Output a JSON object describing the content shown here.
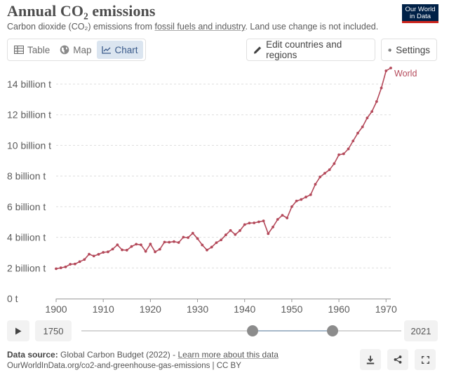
{
  "header": {
    "title": "Annual CO₂ emissions",
    "subtitle_before": "Carbon dioxide (CO₂) emissions from ",
    "subtitle_link": "fossil fuels and industry",
    "subtitle_after": ". Land use change is not included.",
    "logo_line1": "Our World",
    "logo_line2": "in Data"
  },
  "tabs": [
    {
      "label": "Table",
      "icon": "table-icon"
    },
    {
      "label": "Map",
      "icon": "globe-icon"
    },
    {
      "label": "Chart",
      "icon": "line-chart-icon",
      "active": true
    }
  ],
  "toolbar": {
    "edit_label": "Edit countries and regions",
    "settings_label": "Settings"
  },
  "timeline": {
    "start_label": "1750",
    "end_label": "2021",
    "range_start": 1900,
    "range_end": 1971
  },
  "footer": {
    "source_label": "Data source:",
    "source_text": " Global Carbon Budget (2022) - ",
    "learn_more": "Learn more about this data",
    "url": "OurWorldInData.org/co2-and-greenhouse-gas-emissions | CC BY"
  },
  "colors": {
    "series": "#b4495a",
    "grid": "#dddddd",
    "active_tab_bg": "#dbe5f0",
    "logo_bg": "#002147",
    "logo_accent": "#ce261e"
  },
  "chart_data": {
    "type": "line",
    "title": "Annual CO₂ emissions",
    "xlabel": "",
    "ylabel": "",
    "xlim": [
      1900,
      1971
    ],
    "ylim": [
      0,
      14
    ],
    "y_ticks": [
      {
        "value": 0,
        "label": "0 t"
      },
      {
        "value": 2,
        "label": "2 billion t"
      },
      {
        "value": 4,
        "label": "4 billion t"
      },
      {
        "value": 6,
        "label": "6 billion t"
      },
      {
        "value": 8,
        "label": "8 billion t"
      },
      {
        "value": 10,
        "label": "10 billion t"
      },
      {
        "value": 12,
        "label": "12 billion t"
      },
      {
        "value": 14,
        "label": "14 billion t"
      }
    ],
    "x_ticks": [
      1900,
      1910,
      1920,
      1930,
      1940,
      1950,
      1960,
      1970
    ],
    "grid": true,
    "series": [
      {
        "name": "World",
        "x": [
          1900,
          1901,
          1902,
          1903,
          1904,
          1905,
          1906,
          1907,
          1908,
          1909,
          1910,
          1911,
          1912,
          1913,
          1914,
          1915,
          1916,
          1917,
          1918,
          1919,
          1920,
          1921,
          1922,
          1923,
          1924,
          1925,
          1926,
          1927,
          1928,
          1929,
          1930,
          1931,
          1932,
          1933,
          1934,
          1935,
          1936,
          1937,
          1938,
          1939,
          1940,
          1941,
          1942,
          1943,
          1944,
          1945,
          1946,
          1947,
          1948,
          1949,
          1950,
          1951,
          1952,
          1953,
          1954,
          1955,
          1956,
          1957,
          1958,
          1959,
          1960,
          1961,
          1962,
          1963,
          1964,
          1965,
          1966,
          1967,
          1968,
          1969,
          1970,
          1971
        ],
        "values": [
          1.95,
          2.01,
          2.07,
          2.24,
          2.26,
          2.41,
          2.55,
          2.9,
          2.78,
          2.89,
          3.02,
          3.05,
          3.23,
          3.51,
          3.18,
          3.16,
          3.4,
          3.55,
          3.51,
          3.08,
          3.56,
          3.05,
          3.22,
          3.69,
          3.68,
          3.72,
          3.66,
          4.01,
          3.98,
          4.27,
          3.92,
          3.5,
          3.17,
          3.36,
          3.65,
          3.83,
          4.16,
          4.45,
          4.18,
          4.44,
          4.83,
          4.93,
          4.94,
          5.01,
          5.07,
          4.24,
          4.67,
          5.17,
          5.44,
          5.26,
          6.0,
          6.37,
          6.47,
          6.63,
          6.78,
          7.46,
          7.94,
          8.18,
          8.41,
          8.81,
          9.39,
          9.45,
          9.77,
          10.29,
          10.8,
          11.21,
          11.79,
          12.21,
          12.86,
          13.75,
          14.87,
          15.05
        ]
      }
    ]
  }
}
